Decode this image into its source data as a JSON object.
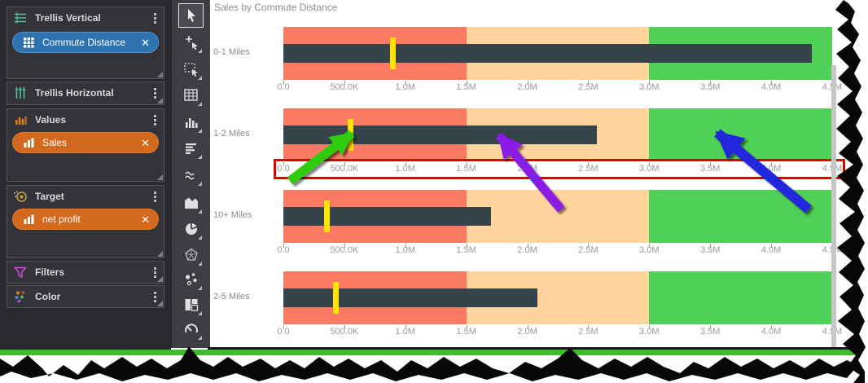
{
  "sidebar": {
    "sections": [
      {
        "label": "Trellis Vertical",
        "icon": "trellis-vertical-icon",
        "pills": [
          {
            "label": "Commute Distance",
            "icon": "grid-icon",
            "remove_glyph": "✕",
            "color": "#2e72b0"
          }
        ]
      },
      {
        "label": "Trellis Horizontal",
        "icon": "trellis-horizontal-icon",
        "pills": []
      },
      {
        "label": "Values",
        "icon": "column-bars-icon",
        "pills": [
          {
            "label": "Sales",
            "icon": "bar-chart-icon",
            "remove_glyph": "✕",
            "color": "#d2691e"
          }
        ]
      },
      {
        "label": "Target",
        "icon": "bullseye-icon",
        "pills": [
          {
            "label": "net profit",
            "icon": "bar-chart-icon",
            "remove_glyph": "✕",
            "color": "#d2691e"
          }
        ]
      },
      {
        "label": "Filters",
        "icon": "funnel-icon",
        "pills": []
      },
      {
        "label": "Color",
        "icon": "color-dots-icon",
        "pills": []
      }
    ]
  },
  "toolbar": {
    "selected_tool": "pointer-tool",
    "tools": [
      "pointer-tool",
      "add-point-tool",
      "rectangle-select-tool",
      "table-tool",
      "column-chart-tool",
      "bar-lines-tool",
      "line-chart-tool",
      "area-chart-tool",
      "pie-chart-tool",
      "radar-chart-tool",
      "scatter-chart-tool",
      "treemap-tool",
      "gauge-tool"
    ]
  },
  "chart_data": {
    "type": "bar",
    "subtype": "bullet",
    "title": "Sales by Commute Distance",
    "categories": [
      "0-1 Miles",
      "1-2 Miles",
      "10+ Miles",
      "2-5 Miles"
    ],
    "series": [
      {
        "name": "Sales",
        "role": "measure",
        "color": "#36434b",
        "values": [
          4330000,
          2570000,
          1700000,
          2080000
        ]
      },
      {
        "name": "net profit",
        "role": "target",
        "color": "#ffe400",
        "values": [
          900000,
          550000,
          360000,
          430000
        ]
      }
    ],
    "bands": [
      {
        "from": 0,
        "to": 1500000,
        "color": "#fb7a63"
      },
      {
        "from": 1500000,
        "to": 3000000,
        "color": "#ffd49d"
      },
      {
        "from": 3000000,
        "to": 4500000,
        "color": "#4fd156"
      }
    ],
    "x_tick_labels": [
      "0.0",
      "500.0K",
      "1.0M",
      "1.5M",
      "2.0M",
      "2.5M",
      "3.0M",
      "3.5M",
      "4.0M",
      "4.5M"
    ],
    "xlim": [
      0,
      4500000
    ],
    "grid": false,
    "legend": "none"
  },
  "annotations": {
    "highlight_box": {
      "color": "#e50000",
      "around": "axis row of 1-2 Miles"
    },
    "arrows": [
      {
        "name": "green-arrow",
        "color": "#2ecc0e",
        "points_to": "yellow target marker on 1-2 Miles"
      },
      {
        "name": "purple-arrow",
        "color": "#8a1ee6",
        "points_to": "sales bar on 1-2 Miles"
      },
      {
        "name": "blue-arrow",
        "color": "#2428dc",
        "points_to": "green band on 1-2 Miles"
      }
    ]
  }
}
